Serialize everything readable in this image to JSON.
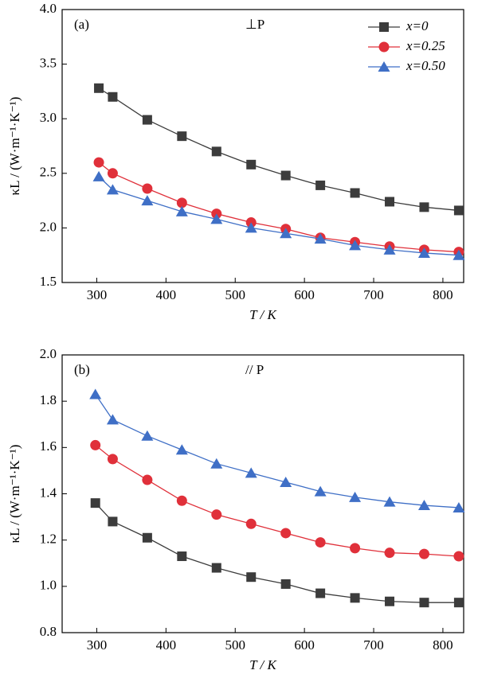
{
  "chart_data": [
    {
      "type": "line",
      "annotations": [
        "(a)",
        "⊥P"
      ],
      "xlabel": "T / K",
      "ylabel": "κL / (W·m⁻¹·K⁻¹)",
      "xlim": [
        250,
        830
      ],
      "xticks": [
        300,
        400,
        500,
        600,
        700,
        800
      ],
      "ylim": [
        1.5,
        4.0
      ],
      "yticks": [
        1.5,
        {
          "value": 2.0,
          "label": "2.0"
        },
        2.5,
        {
          "value": 3.0,
          "label": "3.0"
        },
        3.5,
        {
          "value": 4.0,
          "label": "4.0"
        }
      ],
      "legend": "upper right",
      "x": [
        303,
        323,
        373,
        423,
        473,
        523,
        573,
        623,
        673,
        723,
        773,
        823
      ],
      "series": [
        {
          "name": "x=0",
          "color": "#3c3c3c",
          "marker": "square",
          "values": [
            3.28,
            3.2,
            2.99,
            2.84,
            2.7,
            2.58,
            2.48,
            2.39,
            2.32,
            2.24,
            2.19,
            2.16
          ]
        },
        {
          "name": "x=0.25",
          "color": "#e0303a",
          "marker": "circle",
          "values": [
            2.6,
            2.5,
            2.36,
            2.23,
            2.13,
            2.05,
            1.99,
            1.91,
            1.87,
            1.83,
            1.8,
            1.78
          ]
        },
        {
          "name": "x=0.50",
          "color": "#3f6fc6",
          "marker": "triangle",
          "values": [
            2.47,
            2.35,
            2.25,
            2.15,
            2.08,
            2.0,
            1.95,
            1.9,
            1.84,
            1.8,
            1.77,
            1.75
          ]
        }
      ]
    },
    {
      "type": "line",
      "annotations": [
        "(b)",
        "// P"
      ],
      "xlabel": "T / K",
      "ylabel": "κL / (W·m⁻¹·K⁻¹)",
      "xlim": [
        250,
        830
      ],
      "xticks": [
        300,
        400,
        500,
        600,
        700,
        800
      ],
      "ylim": [
        0.8,
        2.0
      ],
      "yticks": [
        0.8,
        {
          "value": 1.0,
          "label": "1.0"
        },
        1.2,
        1.4,
        1.6,
        1.8,
        {
          "value": 2.0,
          "label": "2.0"
        }
      ],
      "x": [
        298,
        323,
        373,
        423,
        473,
        523,
        573,
        623,
        673,
        723,
        773,
        823
      ],
      "series": [
        {
          "name": "x=0",
          "color": "#3c3c3c",
          "marker": "square",
          "values": [
            1.36,
            1.28,
            1.21,
            1.13,
            1.08,
            1.04,
            1.01,
            0.97,
            0.95,
            0.935,
            0.93,
            0.93
          ]
        },
        {
          "name": "x=0.25",
          "color": "#e0303a",
          "marker": "circle",
          "values": [
            1.61,
            1.55,
            1.46,
            1.37,
            1.31,
            1.27,
            1.23,
            1.19,
            1.165,
            1.145,
            1.14,
            1.13
          ]
        },
        {
          "name": "x=0.50",
          "color": "#3f6fc6",
          "marker": "triangle",
          "values": [
            1.83,
            1.72,
            1.65,
            1.59,
            1.53,
            1.49,
            1.45,
            1.41,
            1.385,
            1.365,
            1.35,
            1.34
          ]
        }
      ]
    }
  ]
}
